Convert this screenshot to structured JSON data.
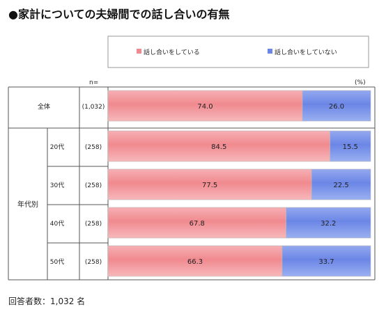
{
  "chart_data": {
    "type": "bar",
    "orientation": "horizontal",
    "stacked": true,
    "percent_stacked": true,
    "title": "●家計についての夫婦間での話し合いの有無",
    "n_label": "n=",
    "unit_label": "(%)",
    "group_label": "年代別",
    "rows": [
      {
        "category": "全体",
        "n": "(1,032)",
        "values": [
          74.0,
          26.0
        ]
      },
      {
        "category": "20代",
        "n": "(258)",
        "values": [
          84.5,
          15.5
        ]
      },
      {
        "category": "30代",
        "n": "(258)",
        "values": [
          77.5,
          22.5
        ]
      },
      {
        "category": "40代",
        "n": "(258)",
        "values": [
          67.8,
          32.2
        ]
      },
      {
        "category": "50代",
        "n": "(258)",
        "values": [
          66.3,
          33.7
        ]
      }
    ],
    "series": [
      {
        "name": "話し合いをしている",
        "color": "#f08a8f"
      },
      {
        "name": "話し合いをしていない",
        "color": "#6b86e6"
      }
    ],
    "legend_position": "top",
    "xlim": [
      0,
      100
    ],
    "footer": "回答者数：1,032 名"
  }
}
